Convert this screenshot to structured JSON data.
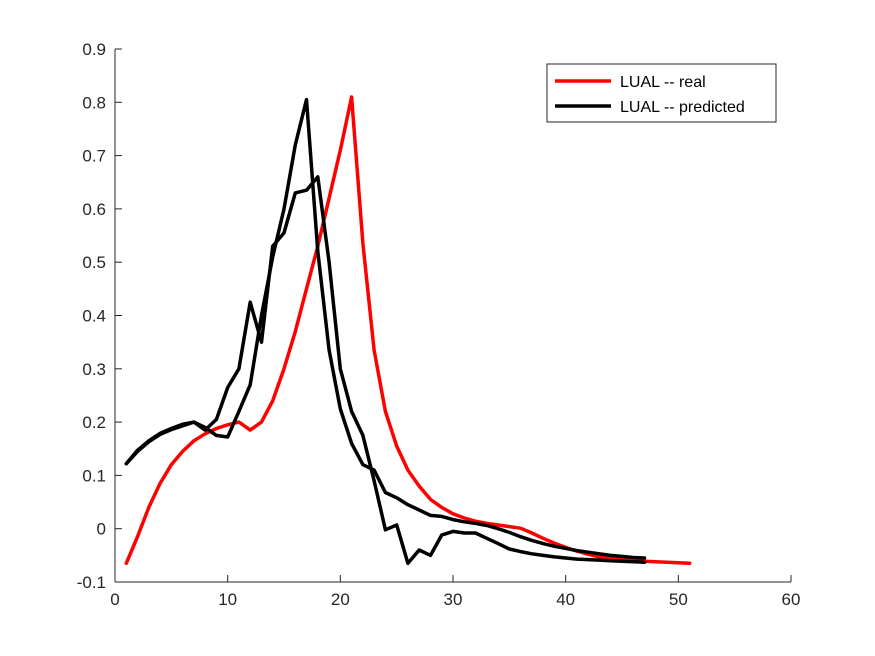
{
  "chart_data": {
    "type": "line",
    "xlim": [
      0,
      60
    ],
    "ylim": [
      -0.1,
      0.9
    ],
    "xticks": [
      0,
      10,
      20,
      30,
      40,
      50,
      60
    ],
    "yticks": [
      -0.1,
      0,
      0.1,
      0.2,
      0.3,
      0.4,
      0.5,
      0.6,
      0.7,
      0.8,
      0.9
    ],
    "xtick_labels": [
      "0",
      "10",
      "20",
      "30",
      "40",
      "50",
      "60"
    ],
    "ytick_labels": [
      "-0.1",
      "0",
      "0.1",
      "0.2",
      "0.3",
      "0.4",
      "0.5",
      "0.6",
      "0.7",
      "0.8",
      "0.9"
    ],
    "grid": false,
    "legend_position": "top-right",
    "legend": [
      "LUAL -- real",
      "LUAL -- predicted"
    ],
    "series": [
      {
        "name": "LUAL -- real",
        "color": "#ff0000",
        "x": [
          1,
          2,
          3,
          4,
          5,
          6,
          7,
          8,
          9,
          10,
          11,
          12,
          13,
          14,
          15,
          16,
          17,
          18,
          19,
          20,
          21,
          22,
          23,
          24,
          25,
          26,
          27,
          28,
          29,
          30,
          31,
          32,
          33,
          34,
          35,
          36,
          37,
          38,
          39,
          40,
          41,
          42,
          43,
          44,
          45,
          46,
          47,
          48,
          49,
          50,
          51
        ],
        "y": [
          -0.065,
          -0.015,
          0.04,
          0.085,
          0.12,
          0.145,
          0.165,
          0.178,
          0.188,
          0.195,
          0.2,
          0.185,
          0.2,
          0.24,
          0.3,
          0.37,
          0.45,
          0.53,
          0.62,
          0.71,
          0.81,
          0.535,
          0.335,
          0.22,
          0.155,
          0.11,
          0.08,
          0.055,
          0.04,
          0.028,
          0.02,
          0.014,
          0.01,
          0.007,
          0.004,
          0.001,
          -0.008,
          -0.018,
          -0.027,
          -0.035,
          -0.042,
          -0.048,
          -0.053,
          -0.056,
          -0.058,
          -0.06,
          -0.061,
          -0.062,
          -0.063,
          -0.064,
          -0.065
        ]
      },
      {
        "name": "LUAL -- predicted",
        "color": "#000000",
        "x": [
          1,
          2,
          3,
          4,
          5,
          6,
          7,
          8,
          9,
          10,
          11,
          12,
          13,
          14,
          15,
          16,
          17,
          18,
          19,
          20,
          21,
          22,
          23,
          24,
          25,
          26,
          27,
          28,
          29,
          30,
          31,
          32,
          33,
          34,
          35,
          36,
          37,
          38,
          39,
          40,
          41,
          42,
          43,
          44,
          45,
          46,
          47
        ],
        "y": [
          0.122,
          0.147,
          0.165,
          0.179,
          0.188,
          0.196,
          0.2,
          0.185,
          0.205,
          0.265,
          0.3,
          0.425,
          0.35,
          0.53,
          0.555,
          0.63,
          0.635,
          0.66,
          0.5,
          0.3,
          0.22,
          0.175,
          0.09,
          -0.002,
          0.007,
          -0.065,
          -0.04,
          -0.05,
          -0.012,
          -0.005,
          -0.008,
          -0.008,
          -0.018,
          -0.028,
          -0.038,
          -0.043,
          -0.047,
          -0.05,
          -0.053,
          -0.055,
          -0.057,
          -0.058,
          -0.059,
          -0.06,
          -0.061,
          -0.062,
          -0.063
        ]
      },
      {
        "name": "",
        "color": "#000000",
        "x": [
          1,
          2,
          3,
          4,
          5,
          6,
          7,
          8,
          9,
          10,
          11,
          12,
          13,
          14,
          15,
          16,
          17,
          18,
          19,
          20,
          21,
          22,
          23,
          24,
          25,
          26,
          27,
          28,
          29,
          30,
          31,
          32,
          33,
          34,
          35,
          36,
          37,
          38,
          39,
          40,
          41,
          42,
          43,
          44,
          45,
          46,
          47
        ],
        "y": [
          0.122,
          0.145,
          0.163,
          0.177,
          0.186,
          0.193,
          0.2,
          0.19,
          0.175,
          0.172,
          0.22,
          0.27,
          0.4,
          0.51,
          0.6,
          0.72,
          0.805,
          0.52,
          0.335,
          0.225,
          0.16,
          0.12,
          0.11,
          0.068,
          0.058,
          0.045,
          0.035,
          0.025,
          0.023,
          0.017,
          0.013,
          0.01,
          0.006,
          0.0,
          -0.007,
          -0.015,
          -0.022,
          -0.028,
          -0.033,
          -0.037,
          -0.041,
          -0.044,
          -0.047,
          -0.05,
          -0.052,
          -0.054,
          -0.055
        ]
      }
    ]
  }
}
